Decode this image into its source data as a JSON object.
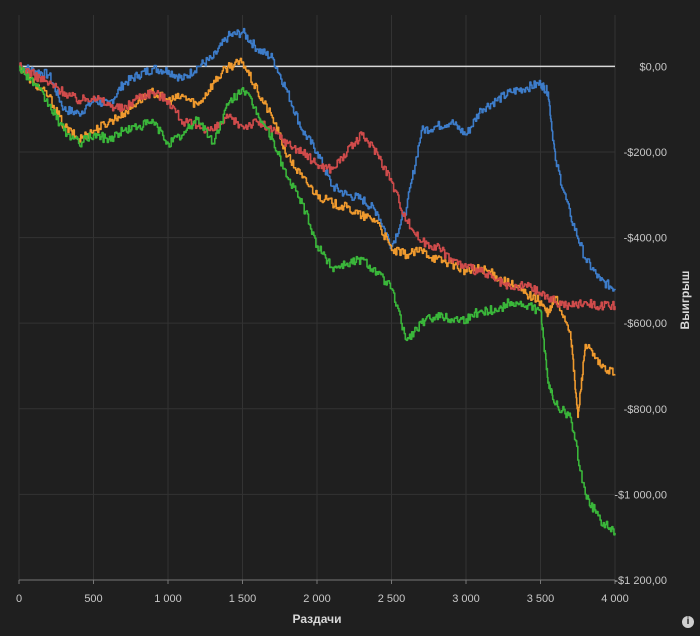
{
  "chart_data": {
    "type": "line",
    "title": "",
    "xlabel": "Раздачи",
    "ylabel": "Выигрыш",
    "xlim": [
      0,
      4000
    ],
    "ylim": [
      -1200,
      120
    ],
    "grid": true,
    "x_ticks": [
      0,
      500,
      1000,
      1500,
      2000,
      2500,
      3000,
      3500,
      4000
    ],
    "x_tick_labels": [
      "0",
      "500",
      "1 000",
      "1 500",
      "2 000",
      "2 500",
      "3 000",
      "3 500",
      "4 000"
    ],
    "y_ticks": [
      0,
      -200,
      -400,
      -600,
      -800,
      -1000,
      -1200
    ],
    "y_tick_labels": [
      "$0,00",
      "-$200,00",
      "-$400,00",
      "-$600,00",
      "-$800,00",
      "-$1 000,00",
      "-$1 200,00"
    ],
    "zero_line": 0,
    "series": [
      {
        "color": "#3d7cc9",
        "points": [
          [
            0,
            0
          ],
          [
            100,
            -10
          ],
          [
            200,
            -20
          ],
          [
            300,
            -100
          ],
          [
            400,
            -110
          ],
          [
            500,
            -80
          ],
          [
            600,
            -90
          ],
          [
            700,
            -40
          ],
          [
            800,
            -20
          ],
          [
            900,
            -5
          ],
          [
            1000,
            -10
          ],
          [
            1100,
            -30
          ],
          [
            1200,
            0
          ],
          [
            1300,
            20
          ],
          [
            1400,
            70
          ],
          [
            1500,
            80
          ],
          [
            1600,
            40
          ],
          [
            1700,
            20
          ],
          [
            1800,
            -60
          ],
          [
            1900,
            -150
          ],
          [
            2000,
            -200
          ],
          [
            2100,
            -280
          ],
          [
            2200,
            -300
          ],
          [
            2300,
            -310
          ],
          [
            2400,
            -340
          ],
          [
            2500,
            -420
          ],
          [
            2600,
            -330
          ],
          [
            2700,
            -150
          ],
          [
            2800,
            -140
          ],
          [
            2900,
            -130
          ],
          [
            3000,
            -160
          ],
          [
            3100,
            -100
          ],
          [
            3200,
            -80
          ],
          [
            3300,
            -60
          ],
          [
            3400,
            -50
          ],
          [
            3500,
            -40
          ],
          [
            3550,
            -60
          ],
          [
            3600,
            -220
          ],
          [
            3700,
            -350
          ],
          [
            3800,
            -450
          ],
          [
            3900,
            -500
          ],
          [
            4000,
            -520
          ]
        ]
      },
      {
        "color": "#ef9a2e",
        "points": [
          [
            0,
            0
          ],
          [
            100,
            -40
          ],
          [
            200,
            -70
          ],
          [
            300,
            -140
          ],
          [
            400,
            -170
          ],
          [
            500,
            -150
          ],
          [
            600,
            -130
          ],
          [
            700,
            -110
          ],
          [
            800,
            -80
          ],
          [
            900,
            -60
          ],
          [
            1000,
            -80
          ],
          [
            1100,
            -70
          ],
          [
            1200,
            -90
          ],
          [
            1300,
            -40
          ],
          [
            1400,
            0
          ],
          [
            1500,
            10
          ],
          [
            1600,
            -60
          ],
          [
            1700,
            -120
          ],
          [
            1800,
            -210
          ],
          [
            1900,
            -260
          ],
          [
            2000,
            -300
          ],
          [
            2100,
            -320
          ],
          [
            2200,
            -330
          ],
          [
            2300,
            -350
          ],
          [
            2400,
            -360
          ],
          [
            2500,
            -430
          ],
          [
            2600,
            -440
          ],
          [
            2700,
            -430
          ],
          [
            2800,
            -450
          ],
          [
            2900,
            -460
          ],
          [
            3000,
            -480
          ],
          [
            3100,
            -470
          ],
          [
            3200,
            -490
          ],
          [
            3300,
            -510
          ],
          [
            3400,
            -530
          ],
          [
            3500,
            -550
          ],
          [
            3550,
            -580
          ],
          [
            3600,
            -540
          ],
          [
            3700,
            -620
          ],
          [
            3750,
            -820
          ],
          [
            3800,
            -650
          ],
          [
            3900,
            -700
          ],
          [
            4000,
            -720
          ]
        ]
      },
      {
        "color": "#cf4b4b",
        "points": [
          [
            0,
            0
          ],
          [
            100,
            -20
          ],
          [
            200,
            -40
          ],
          [
            300,
            -60
          ],
          [
            400,
            -80
          ],
          [
            500,
            -70
          ],
          [
            600,
            -90
          ],
          [
            700,
            -100
          ],
          [
            800,
            -70
          ],
          [
            900,
            -60
          ],
          [
            1000,
            -80
          ],
          [
            1100,
            -130
          ],
          [
            1200,
            -140
          ],
          [
            1300,
            -150
          ],
          [
            1400,
            -120
          ],
          [
            1500,
            -140
          ],
          [
            1600,
            -130
          ],
          [
            1700,
            -150
          ],
          [
            1800,
            -180
          ],
          [
            1900,
            -200
          ],
          [
            2000,
            -230
          ],
          [
            2100,
            -240
          ],
          [
            2200,
            -200
          ],
          [
            2300,
            -160
          ],
          [
            2400,
            -200
          ],
          [
            2500,
            -270
          ],
          [
            2600,
            -360
          ],
          [
            2700,
            -410
          ],
          [
            2800,
            -420
          ],
          [
            2900,
            -450
          ],
          [
            3000,
            -470
          ],
          [
            3100,
            -480
          ],
          [
            3200,
            -500
          ],
          [
            3300,
            -520
          ],
          [
            3400,
            -510
          ],
          [
            3500,
            -530
          ],
          [
            3600,
            -550
          ],
          [
            3700,
            -560
          ],
          [
            3800,
            -550
          ],
          [
            3900,
            -560
          ],
          [
            4000,
            -560
          ]
        ]
      },
      {
        "color": "#3ab63a",
        "points": [
          [
            0,
            0
          ],
          [
            100,
            -40
          ],
          [
            200,
            -90
          ],
          [
            300,
            -150
          ],
          [
            400,
            -180
          ],
          [
            500,
            -160
          ],
          [
            600,
            -170
          ],
          [
            700,
            -150
          ],
          [
            800,
            -140
          ],
          [
            900,
            -130
          ],
          [
            1000,
            -180
          ],
          [
            1100,
            -160
          ],
          [
            1200,
            -120
          ],
          [
            1300,
            -180
          ],
          [
            1400,
            -90
          ],
          [
            1500,
            -50
          ],
          [
            1600,
            -110
          ],
          [
            1700,
            -170
          ],
          [
            1800,
            -260
          ],
          [
            1900,
            -320
          ],
          [
            2000,
            -420
          ],
          [
            2100,
            -470
          ],
          [
            2200,
            -460
          ],
          [
            2300,
            -450
          ],
          [
            2400,
            -480
          ],
          [
            2500,
            -520
          ],
          [
            2600,
            -640
          ],
          [
            2700,
            -600
          ],
          [
            2800,
            -580
          ],
          [
            2900,
            -590
          ],
          [
            3000,
            -590
          ],
          [
            3100,
            -570
          ],
          [
            3200,
            -570
          ],
          [
            3300,
            -550
          ],
          [
            3400,
            -560
          ],
          [
            3500,
            -570
          ],
          [
            3550,
            -740
          ],
          [
            3600,
            -790
          ],
          [
            3700,
            -820
          ],
          [
            3800,
            -1000
          ],
          [
            3900,
            -1060
          ],
          [
            4000,
            -1090
          ]
        ]
      }
    ]
  }
}
